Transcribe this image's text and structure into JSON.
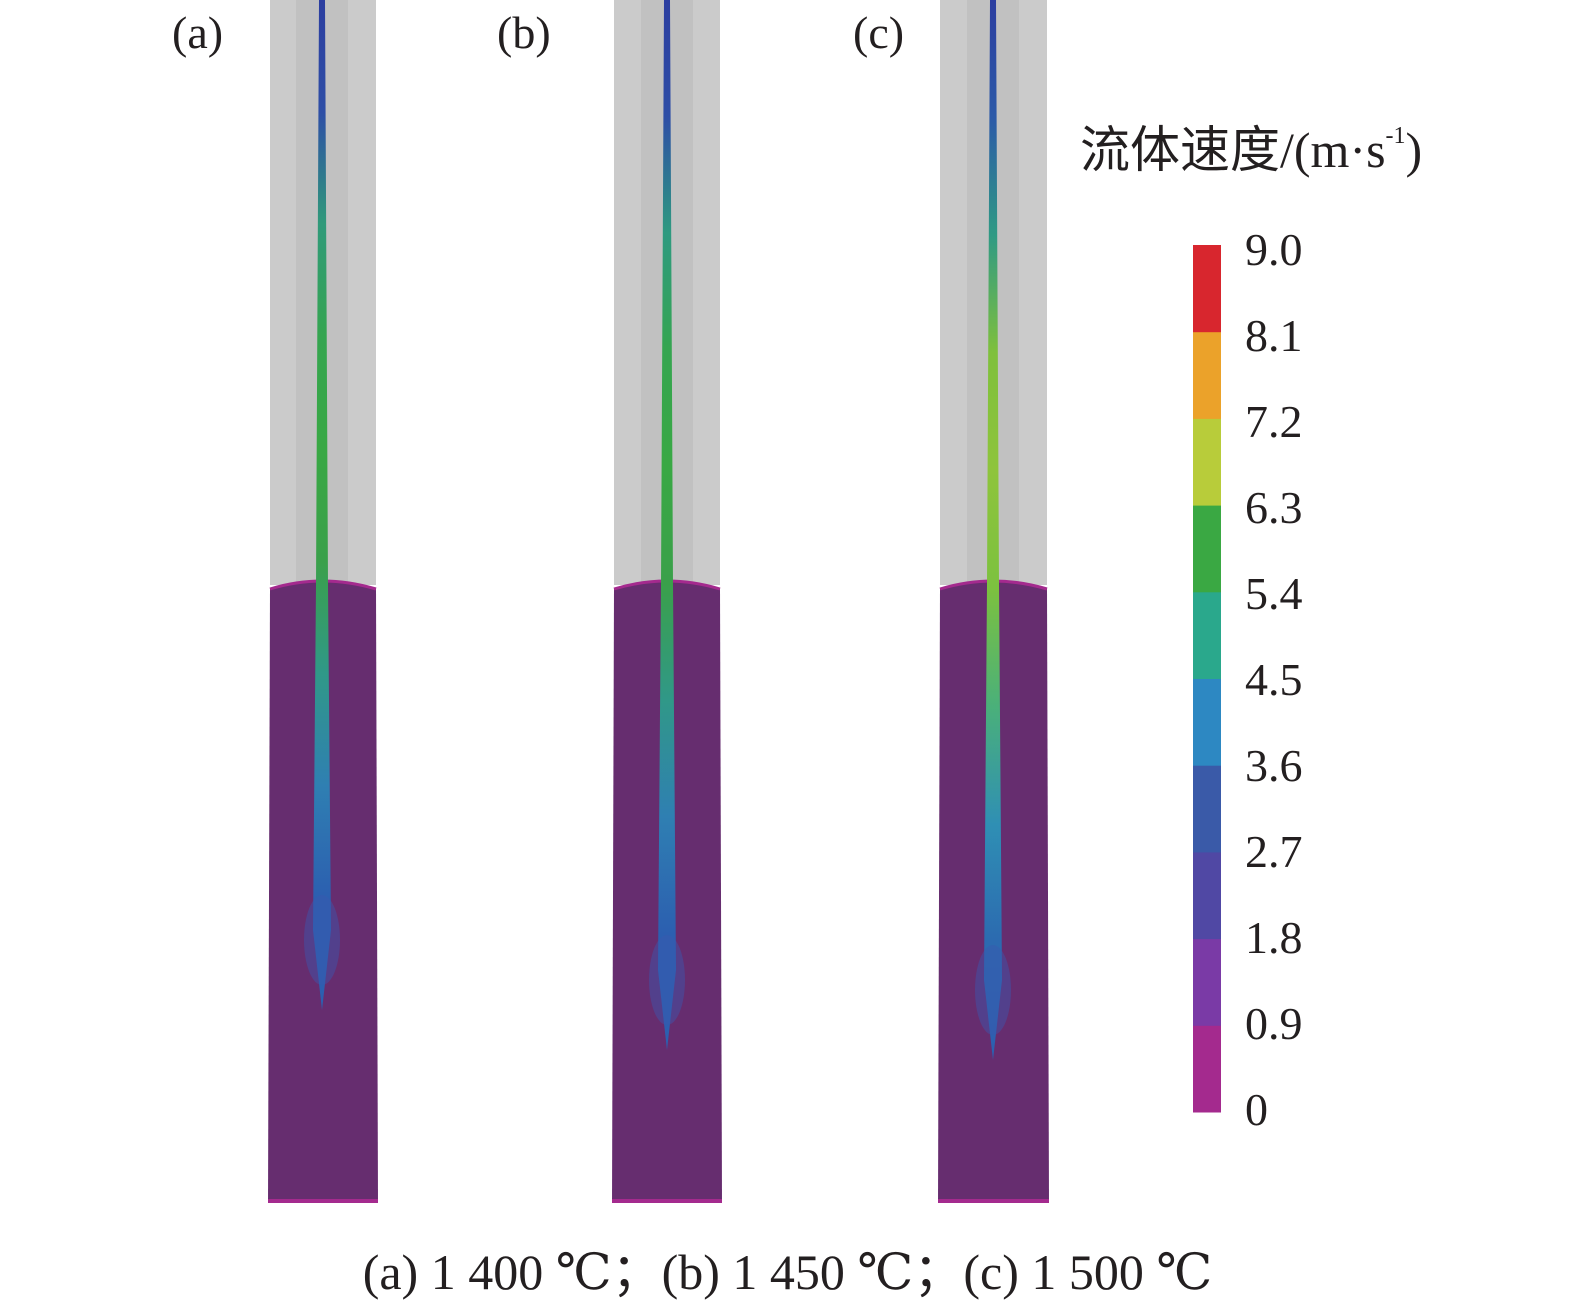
{
  "panels": [
    {
      "label": "(a)",
      "jet_colors": [
        "#2c3ea0",
        "#2e4ea6",
        "#309a7a",
        "#35a550",
        "#39a844",
        "#3aa04a",
        "#309888",
        "#2f7fb2",
        "#2c5fb0",
        "#2c5fb0"
      ]
    },
    {
      "label": "(b)",
      "jet_colors": [
        "#2c3ea0",
        "#2e4ea6",
        "#2e9a80",
        "#35a550",
        "#39a844",
        "#3aa04a",
        "#309888",
        "#2f7fb2",
        "#2c5fb0",
        "#2c5fb0"
      ]
    },
    {
      "label": "(c)",
      "jet_colors": [
        "#2c3ea0",
        "#2c5aa8",
        "#2f9a84",
        "#7fc03c",
        "#8ec43c",
        "#7cc13f",
        "#4ab07a",
        "#2f8fb4",
        "#2c6ab0",
        "#2c5fb0"
      ]
    }
  ],
  "colorbar": {
    "title": "流体速度/(m·s",
    "title_sup": "-1",
    "title_end": ")",
    "ticks": [
      "9.0",
      "8.1",
      "7.2",
      "6.3",
      "5.4",
      "4.5",
      "3.6",
      "2.7",
      "1.8",
      "0.9",
      "0"
    ],
    "colors": [
      "#a42a8e",
      "#7a3aa6",
      "#5048a4",
      "#3a5aa8",
      "#2d88c2",
      "#2aa88c",
      "#3aa843",
      "#b8cc3a",
      "#eba22a",
      "#d8262e"
    ]
  },
  "colors": {
    "gas_region": "#cbcbcb",
    "gas_inner": "#c1c1c1",
    "liquid": "#662d6f",
    "surface_line": "#a42a8e"
  },
  "caption": "(a) 1 400 ℃；(b) 1 450 ℃；(c) 1 500 ℃"
}
